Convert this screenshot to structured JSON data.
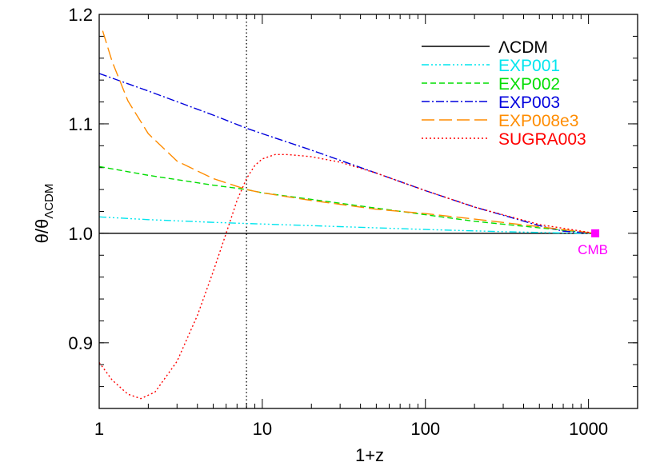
{
  "chart_data": {
    "type": "line",
    "title": "",
    "xlabel": "1+z",
    "ylabel": "θ/θ",
    "ylabel_sub": "ΛCDM",
    "xscale": "log",
    "xlim": [
      1,
      2000
    ],
    "ylim": [
      0.84,
      1.2
    ],
    "x_ticks": [
      {
        "value": 1,
        "label": "1"
      },
      {
        "value": 10,
        "label": "10"
      },
      {
        "value": 100,
        "label": "100"
      },
      {
        "value": 1000,
        "label": "1000"
      }
    ],
    "y_ticks": [
      {
        "value": 0.9,
        "label": "0.9"
      },
      {
        "value": 1.0,
        "label": "1.0"
      },
      {
        "value": 1.1,
        "label": "1.1"
      },
      {
        "value": 1.2,
        "label": "1.2"
      }
    ],
    "legend_position": "top-right",
    "vertical_line": {
      "x": 8,
      "style": "dotted",
      "color": "#000000"
    },
    "marker": {
      "x": 1100,
      "y": 1.0,
      "label": "CMB",
      "color": "#ff00ff"
    },
    "series": [
      {
        "name": "ΛCDM",
        "color": "#000000",
        "dash": "none",
        "points": [
          [
            1,
            1.0
          ],
          [
            1100,
            1.0
          ]
        ]
      },
      {
        "name": "EXP001",
        "color": "#00e5ee",
        "dash": "9,3,2,3,2,3,2,3",
        "points": [
          [
            1,
            1.015
          ],
          [
            2,
            1.0125
          ],
          [
            5,
            1.01
          ],
          [
            10,
            1.0085
          ],
          [
            20,
            1.007
          ],
          [
            50,
            1.005
          ],
          [
            100,
            1.0035
          ],
          [
            300,
            1.0015
          ],
          [
            700,
            1.0003
          ],
          [
            1100,
            1.0
          ]
        ]
      },
      {
        "name": "EXP002",
        "color": "#00dd00",
        "dash": "7,4",
        "points": [
          [
            1,
            1.061
          ],
          [
            2,
            1.053
          ],
          [
            5,
            1.044
          ],
          [
            8,
            1.04
          ],
          [
            10,
            1.037
          ],
          [
            20,
            1.031
          ],
          [
            50,
            1.023
          ],
          [
            100,
            1.017
          ],
          [
            200,
            1.011
          ],
          [
            500,
            1.005
          ],
          [
            1100,
            1.0
          ]
        ]
      },
      {
        "name": "EXP003",
        "color": "#0000dd",
        "dash": "10,3,2,3",
        "points": [
          [
            1,
            1.146
          ],
          [
            2,
            1.13
          ],
          [
            5,
            1.108
          ],
          [
            8,
            1.096
          ],
          [
            10,
            1.091
          ],
          [
            20,
            1.076
          ],
          [
            50,
            1.055
          ],
          [
            100,
            1.039
          ],
          [
            200,
            1.024
          ],
          [
            500,
            1.007
          ],
          [
            700,
            1.002
          ],
          [
            1100,
            1.0
          ]
        ]
      },
      {
        "name": "EXP008e3",
        "color": "#ff8c00",
        "dash": "16,6",
        "points": [
          [
            1.05,
            1.185
          ],
          [
            1.2,
            1.157
          ],
          [
            1.5,
            1.121
          ],
          [
            2,
            1.091
          ],
          [
            3,
            1.066
          ],
          [
            5,
            1.05
          ],
          [
            8,
            1.04
          ],
          [
            10,
            1.037
          ],
          [
            20,
            1.03
          ],
          [
            50,
            1.022
          ],
          [
            100,
            1.018
          ],
          [
            200,
            1.013
          ],
          [
            500,
            1.006
          ],
          [
            1100,
            1.0
          ]
        ]
      },
      {
        "name": "SUGRA003",
        "color": "#ff0000",
        "dash": "2,3",
        "points": [
          [
            1,
            0.882
          ],
          [
            1.2,
            0.866
          ],
          [
            1.5,
            0.853
          ],
          [
            1.8,
            0.849
          ],
          [
            2.2,
            0.855
          ],
          [
            3,
            0.883
          ],
          [
            4,
            0.925
          ],
          [
            5,
            0.965
          ],
          [
            6,
            1.0
          ],
          [
            7,
            1.03
          ],
          [
            8,
            1.05
          ],
          [
            9,
            1.062
          ],
          [
            10,
            1.068
          ],
          [
            12,
            1.072
          ],
          [
            14,
            1.072
          ],
          [
            17,
            1.071
          ],
          [
            20,
            1.07
          ],
          [
            30,
            1.065
          ],
          [
            50,
            1.055
          ],
          [
            100,
            1.039
          ],
          [
            200,
            1.024
          ],
          [
            500,
            1.008
          ],
          [
            1100,
            1.0
          ]
        ]
      }
    ]
  }
}
